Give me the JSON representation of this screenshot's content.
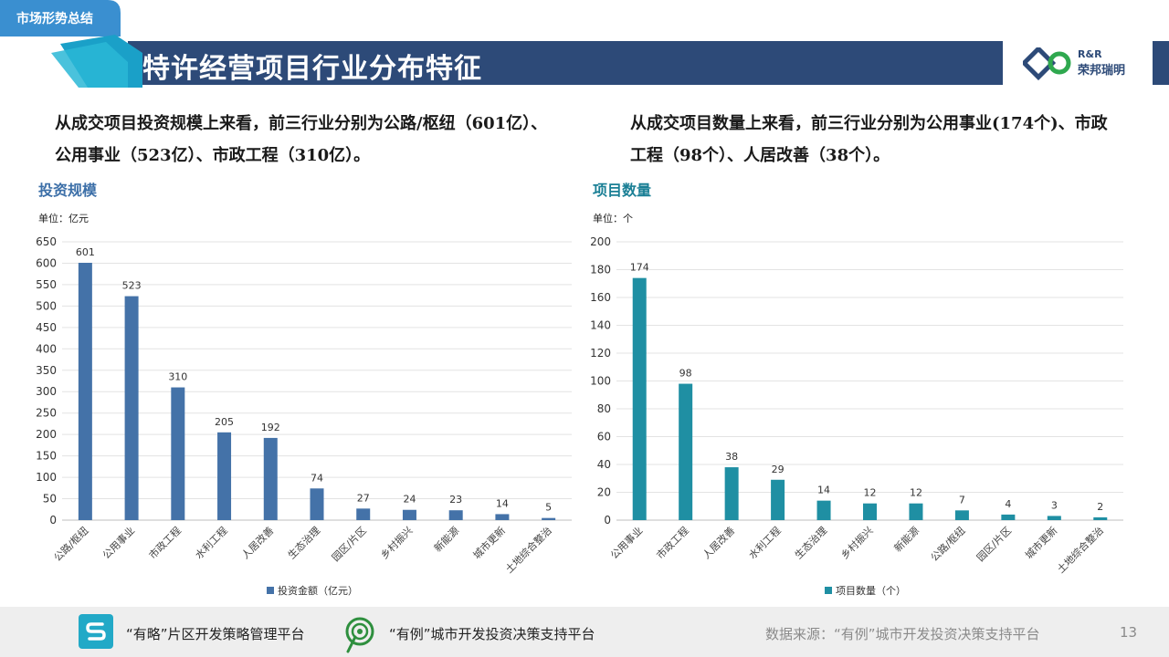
{
  "header": {
    "section_tag": "市场形势总结",
    "title": "特许经营项目行业分布特征",
    "logo_line1": "R&R",
    "logo_line2": "荣邦瑞明"
  },
  "summary": {
    "left_line1": "从成交项目投资规模上来看，前三行业分别为公路/枢纽（601亿）、",
    "left_line2": "公用事业（523亿）、市政工程（310亿）。",
    "right_line1": "从成交项目数量上来看，前三行业分别为公用事业(174个)、市政",
    "right_line2": "工程（98个）、人居改善（38个）。"
  },
  "left_panel": {
    "subtitle": "投资规模",
    "unit": "单位：亿元",
    "legend": "投资金额（亿元）"
  },
  "right_panel": {
    "subtitle": "项目数量",
    "unit": "单位：个",
    "legend": "项目数量（个）"
  },
  "chart_data": [
    {
      "type": "bar",
      "categories": [
        "公路/枢纽",
        "公用事业",
        "市政工程",
        "水利工程",
        "人居改善",
        "生态治理",
        "园区/片区",
        "乡村振兴",
        "新能源",
        "城市更新",
        "土地综合整治"
      ],
      "series": [
        {
          "name": "投资金额（亿元）",
          "values": [
            601,
            523,
            310,
            205,
            192,
            74,
            27,
            24,
            23,
            14,
            5
          ]
        }
      ],
      "ylim": [
        0,
        650
      ],
      "yticks": [
        0,
        50,
        100,
        150,
        200,
        250,
        300,
        350,
        400,
        450,
        500,
        550,
        600,
        650
      ],
      "color": "#4472a8",
      "grid": true,
      "legend": "bottom-center"
    },
    {
      "type": "bar",
      "categories": [
        "公用事业",
        "市政工程",
        "人居改善",
        "水利工程",
        "生态治理",
        "乡村振兴",
        "新能源",
        "公路/枢纽",
        "园区/片区",
        "城市更新",
        "土地综合整治"
      ],
      "series": [
        {
          "name": "项目数量（个）",
          "values": [
            174,
            98,
            38,
            29,
            14,
            12,
            12,
            7,
            4,
            3,
            2
          ]
        }
      ],
      "ylim": [
        0,
        200
      ],
      "yticks": [
        0,
        20,
        40,
        60,
        80,
        100,
        120,
        140,
        160,
        180,
        200
      ],
      "color": "#1f8fa3",
      "grid": true,
      "legend": "bottom-center"
    }
  ],
  "footer": {
    "platform1": "“有略”片区开发策略管理平台",
    "platform2": "“有例”城市开发投资决策支持平台",
    "source": "数据来源：“有例”城市开发投资决策支持平台",
    "page": "13"
  },
  "colors": {
    "navy": "#2d4a78",
    "teal": "#1f8fa3",
    "blue": "#4472a8",
    "tag": "#3a8fd0",
    "left_subtitle": "#3c6fa8",
    "right_subtitle": "#1a7f95"
  }
}
